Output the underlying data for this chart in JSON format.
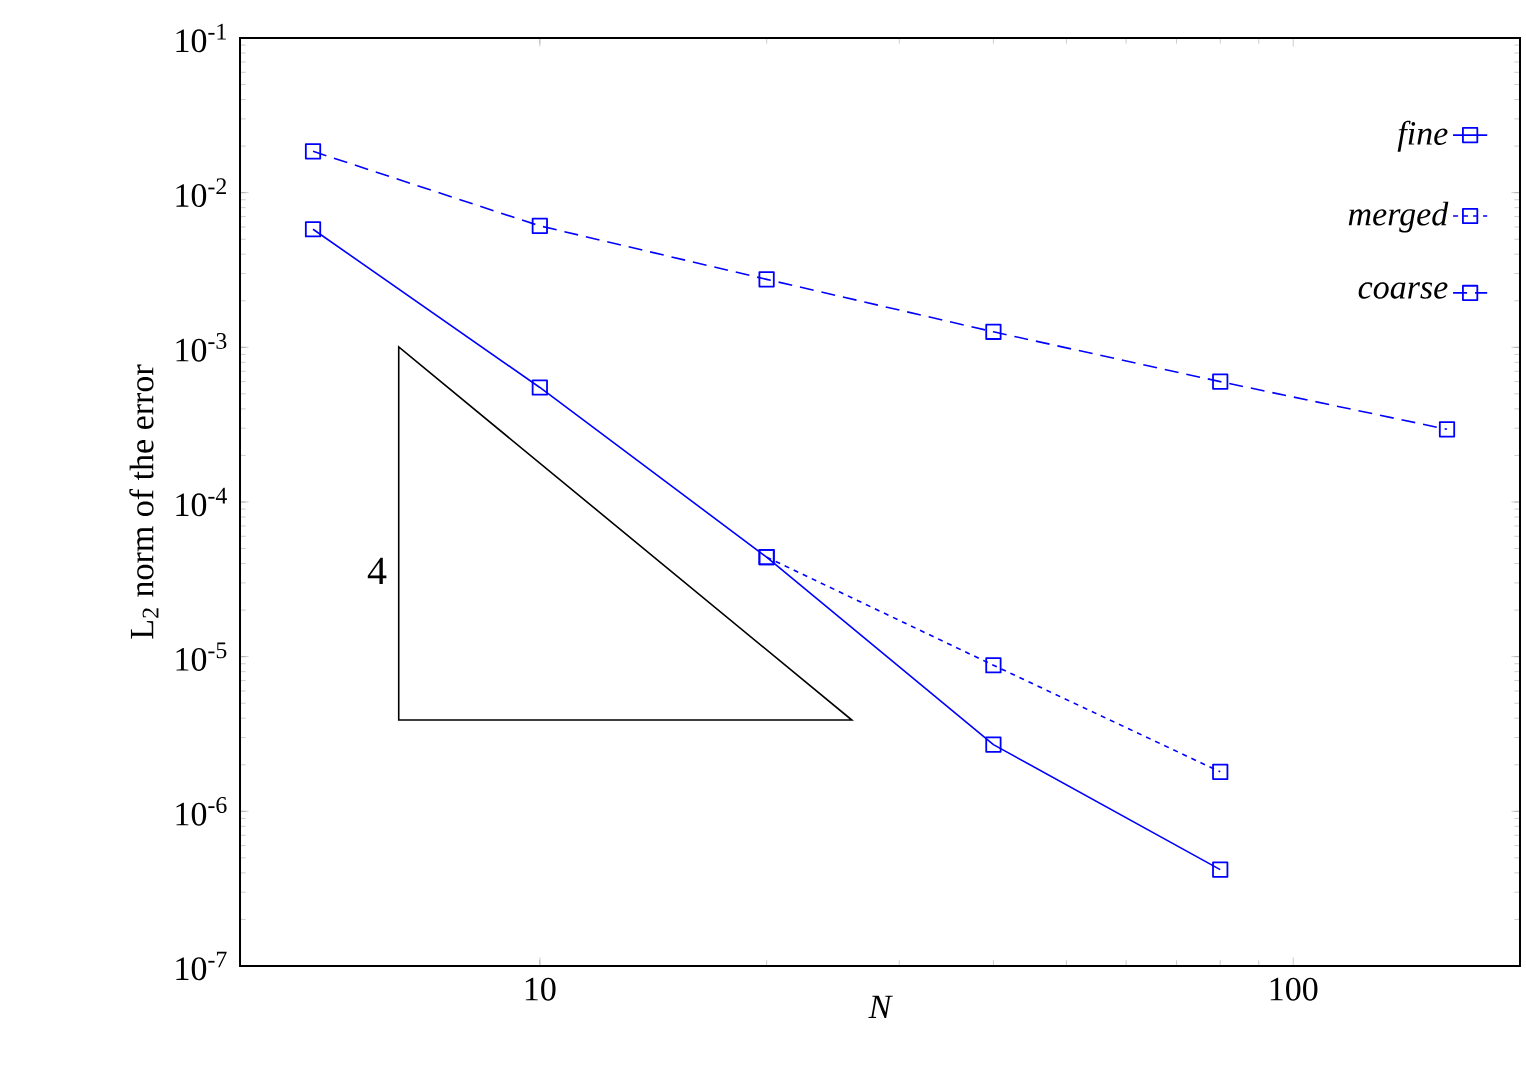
{
  "chart_data": {
    "type": "line",
    "xlabel": "N",
    "ylabel": "L$_{2}$ norm of the error",
    "log": "xy",
    "grid": false,
    "legend": "top right",
    "marker": "square",
    "xlim": [
      4,
      200
    ],
    "ylim": [
      1e-07,
      0.1
    ],
    "xticks": [
      10,
      100
    ],
    "yticks": [
      {
        "value": 1e-07,
        "label": "10$^{-7}$"
      },
      {
        "value": 1e-06,
        "label": "10$^{-6}$"
      },
      {
        "value": 1e-05,
        "label": "10$^{-5}$"
      },
      {
        "value": 0.0001,
        "label": "10$^{-4}$"
      },
      {
        "value": 0.001,
        "label": "10$^{-3}$"
      },
      {
        "value": 0.01,
        "label": "10$^{-2}$"
      },
      {
        "value": 0.1,
        "label": "10$^{-1}$"
      }
    ],
    "series": [
      {
        "name": "fine",
        "color": "#0000ff",
        "line_style": "solid",
        "x": [
          5,
          10,
          20,
          40,
          80
        ],
        "values": [
          0.0058,
          0.00055,
          4.4e-05,
          2.7e-06,
          4.2e-07
        ]
      },
      {
        "name": "merged",
        "color": "#0000ff",
        "line_style": "dotted",
        "x": [
          20,
          40,
          80
        ],
        "values": [
          4.4e-05,
          8.8e-06,
          1.8e-06
        ]
      },
      {
        "name": "coarse",
        "color": "#0000ff",
        "line_style": "dashed",
        "x": [
          5,
          10,
          20,
          40,
          80,
          160
        ],
        "values": [
          0.0185,
          0.0061,
          0.00275,
          0.00126,
          0.0006,
          0.000295
        ]
      }
    ],
    "annotations": [
      "4"
    ]
  }
}
